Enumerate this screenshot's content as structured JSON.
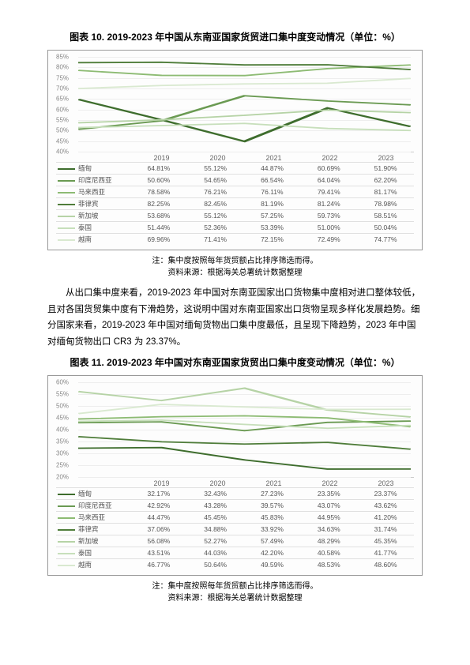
{
  "chart10": {
    "type": "line",
    "title": "图表 10. 2019-2023 年中国从东南亚国家货贸进口集中度变动情况（单位：%）",
    "years": [
      "2019",
      "2020",
      "2021",
      "2022",
      "2023"
    ],
    "ylim": [
      40,
      85
    ],
    "ytick_step": 5,
    "grid_color": "#eeeeee",
    "label_color": "#888888",
    "series": [
      {
        "name": "缅甸",
        "color": "#3e6d2d",
        "values": [
          64.81,
          55.12,
          44.87,
          60.69,
          51.9
        ]
      },
      {
        "name": "印度尼西亚",
        "color": "#6a9a52",
        "values": [
          50.6,
          54.65,
          66.54,
          64.04,
          62.2
        ]
      },
      {
        "name": "马来西亚",
        "color": "#8dbb73",
        "values": [
          78.58,
          76.21,
          76.11,
          79.41,
          81.17
        ]
      },
      {
        "name": "菲律宾",
        "color": "#4f7d3a",
        "values": [
          82.25,
          82.45,
          81.19,
          81.24,
          78.98
        ]
      },
      {
        "name": "新加坡",
        "color": "#b6d3a6",
        "values": [
          53.68,
          55.12,
          57.25,
          59.73,
          58.51
        ]
      },
      {
        "name": "泰国",
        "color": "#c7dfbb",
        "values": [
          51.44,
          52.36,
          53.39,
          51.0,
          50.04
        ]
      },
      {
        "name": "越南",
        "color": "#d9e9d0",
        "values": [
          69.96,
          71.41,
          72.15,
          72.49,
          74.77
        ]
      }
    ],
    "note": "注：集中度按照每年货贸额占比排序筛选而得。",
    "source": "资料来源：根据海关总署统计数据整理"
  },
  "paragraph": "从出口集中度来看，2019-2023 年中国对东南亚国家出口货物集中度相对进口整体较低，且对各国货贸集中度有下滑趋势，这说明中国对东南亚国家出口货物呈现多样化发展趋势。细分国家来看，2019-2023 年中国对缅甸货物出口集中度最低，且呈现下降趋势，2023 年中国对缅甸货物出口 CR3 为 23.37%。",
  "chart11": {
    "type": "line",
    "title": "图表 11. 2019-2023 年中国对东南亚国家货贸出口集中度变动情况（单位：%）",
    "years": [
      "2019",
      "2020",
      "2021",
      "2022",
      "2023"
    ],
    "ylim": [
      20,
      60
    ],
    "ytick_step": 5,
    "grid_color": "#eeeeee",
    "label_color": "#888888",
    "series": [
      {
        "name": "缅甸",
        "color": "#3e6d2d",
        "values": [
          32.17,
          32.43,
          27.23,
          23.35,
          23.37
        ]
      },
      {
        "name": "印度尼西亚",
        "color": "#6a9a52",
        "values": [
          42.92,
          43.28,
          39.57,
          43.07,
          43.62
        ]
      },
      {
        "name": "马来西亚",
        "color": "#8dbb73",
        "values": [
          44.47,
          45.45,
          45.83,
          44.95,
          41.2
        ]
      },
      {
        "name": "菲律宾",
        "color": "#4f7d3a",
        "values": [
          37.06,
          34.88,
          33.92,
          34.63,
          31.74
        ]
      },
      {
        "name": "新加坡",
        "color": "#b6d3a6",
        "values": [
          56.08,
          52.27,
          57.49,
          48.29,
          45.35
        ]
      },
      {
        "name": "泰国",
        "color": "#c7dfbb",
        "values": [
          43.51,
          44.03,
          42.2,
          40.58,
          41.77
        ]
      },
      {
        "name": "越南",
        "color": "#d9e9d0",
        "values": [
          46.77,
          50.64,
          49.59,
          48.53,
          48.6
        ]
      }
    ],
    "note": "注：集中度按照每年货贸额占比排序筛选而得。",
    "source": "资料来源：根据海关总署统计数据整理"
  }
}
